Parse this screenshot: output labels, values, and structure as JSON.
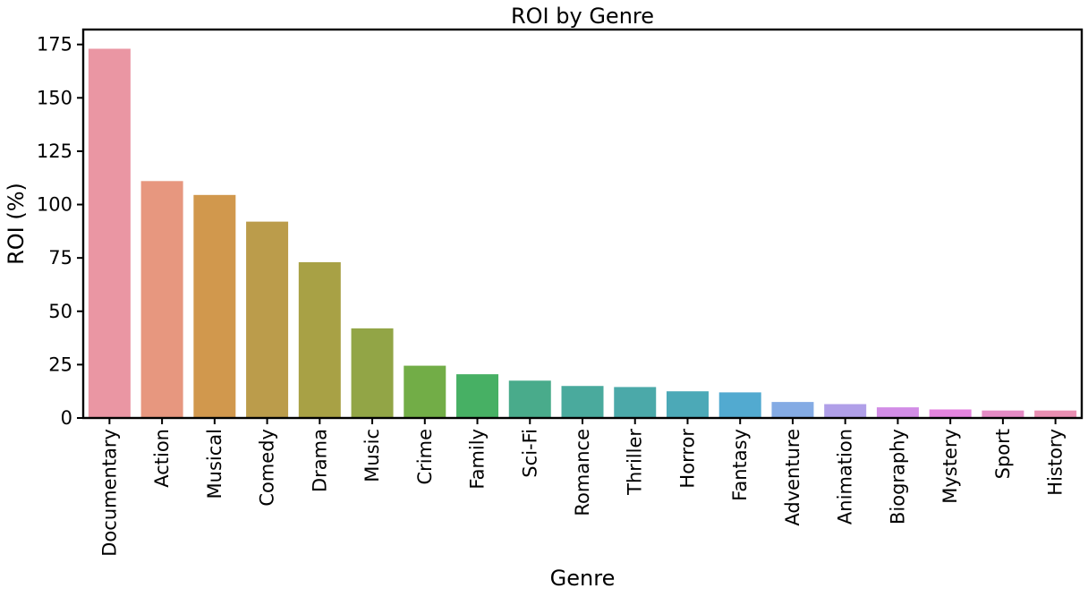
{
  "chart_data": {
    "type": "bar",
    "title": "ROI by Genre",
    "xlabel": "Genre",
    "ylabel": "ROI (%)",
    "ylim": [
      0,
      182
    ],
    "yticks": [
      0,
      25,
      50,
      75,
      100,
      125,
      150,
      175
    ],
    "grid": false,
    "categories": [
      "Documentary",
      "Action",
      "Musical",
      "Comedy",
      "Drama",
      "Music",
      "Crime",
      "Family",
      "Sci-Fi",
      "Romance",
      "Thriller",
      "Horror",
      "Fantasy",
      "Adventure",
      "Animation",
      "Biography",
      "Mystery",
      "Sport",
      "History"
    ],
    "values": [
      173,
      111,
      104.5,
      92,
      73,
      42,
      24.5,
      20.5,
      17.5,
      15,
      14.5,
      12.5,
      12,
      7.5,
      6.5,
      5,
      4,
      3.5,
      3.5
    ],
    "colors": [
      "#ea96a3",
      "#e7977f",
      "#d1984d",
      "#bb9c4b",
      "#a8a145",
      "#92a546",
      "#72ad47",
      "#47b064",
      "#49ab8b",
      "#4aaa9d",
      "#4ba9a9",
      "#4ca9b7",
      "#52aad0",
      "#84abe4",
      "#b09fe8",
      "#d28de6",
      "#e484de",
      "#e58bc5",
      "#e98fb2"
    ]
  }
}
